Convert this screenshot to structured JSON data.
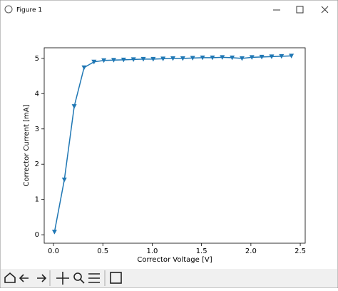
{
  "window": {
    "title": "Figure 1"
  },
  "chart_data": {
    "type": "line",
    "x_label": "Corrector Voltage [V]",
    "y_label": "Corrector Current [mA]",
    "x": [
      0.01,
      0.11,
      0.21,
      0.31,
      0.41,
      0.51,
      0.61,
      0.71,
      0.81,
      0.91,
      1.01,
      1.11,
      1.21,
      1.31,
      1.41,
      1.51,
      1.61,
      1.71,
      1.81,
      1.91,
      2.01,
      2.11,
      2.21,
      2.31,
      2.41
    ],
    "values": [
      0.08,
      1.56,
      3.64,
      4.74,
      4.9,
      4.94,
      4.95,
      4.96,
      4.97,
      4.98,
      4.98,
      4.99,
      5.0,
      5.0,
      5.01,
      5.02,
      5.02,
      5.03,
      5.02,
      5.0,
      5.03,
      5.04,
      5.05,
      5.06,
      5.07
    ],
    "color": "#1f77b4",
    "marker": "triangle-down",
    "xlim": [
      -0.094,
      2.55
    ],
    "ylim": [
      -0.24,
      5.3
    ],
    "xticks": [
      {
        "value": 0,
        "label": "0.0"
      },
      0.5,
      {
        "value": 1,
        "label": "1.0"
      },
      1.5,
      {
        "value": 2,
        "label": "2.0"
      },
      2.5
    ],
    "yticks": [
      0,
      1,
      2,
      3,
      4,
      5
    ],
    "grid": false
  }
}
